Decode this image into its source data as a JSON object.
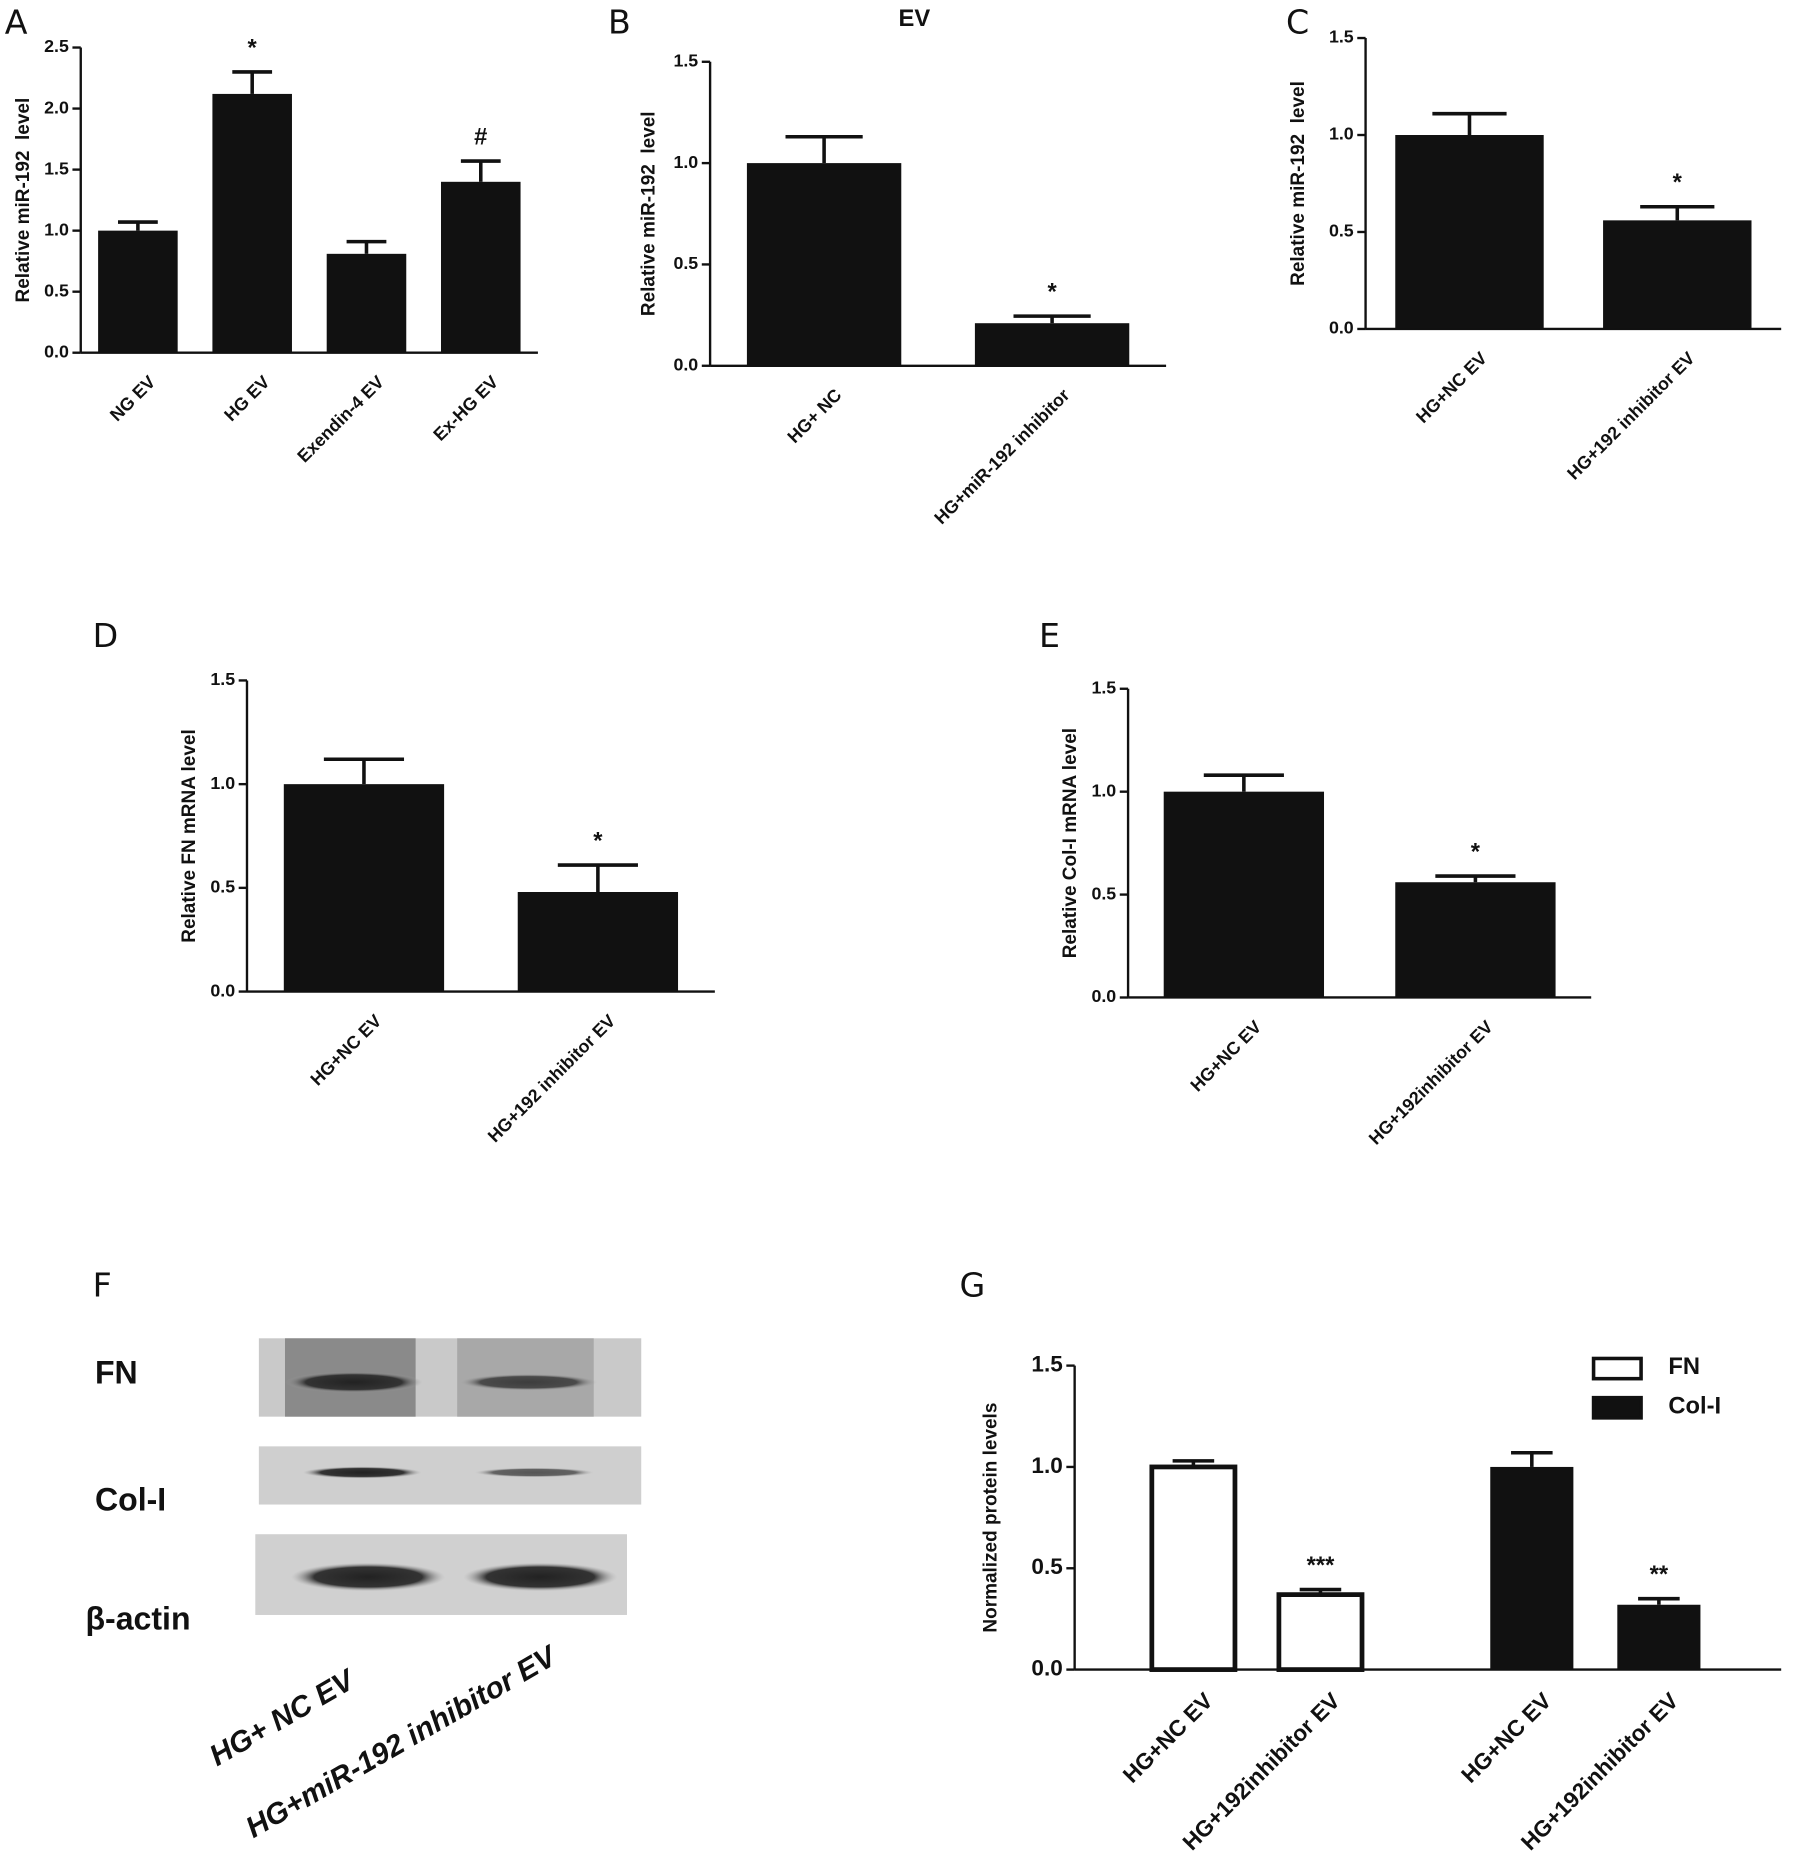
{
  "chart_data": [
    {
      "type": "bar",
      "label": "A",
      "ylabel": "Relative miR-192  level",
      "categories": [
        "NG EV",
        "HG EV",
        "Exendin-4 EV",
        "Ex-HG EV"
      ],
      "values": [
        1.0,
        2.12,
        0.81,
        1.4
      ],
      "errors": [
        0.07,
        0.18,
        0.1,
        0.17
      ],
      "markers": [
        null,
        "*",
        null,
        "#"
      ],
      "color": "#111111",
      "ylim": [
        0,
        2.5
      ],
      "yticks": [
        {
          "value": 0,
          "label": "0.0"
        },
        {
          "value": 0.5,
          "label": "0.5"
        },
        {
          "value": 1,
          "label": "1.0"
        },
        {
          "value": 1.5,
          "label": "1.5"
        },
        {
          "value": 2,
          "label": "2.0"
        },
        {
          "value": 2.5,
          "label": "2.5"
        }
      ]
    },
    {
      "type": "bar",
      "label": "B",
      "title": "EV",
      "ylabel": "Relative miR-192  level",
      "categories": [
        "HG+ NC",
        "HG+miR-192 inhibitor"
      ],
      "values": [
        1.0,
        0.21
      ],
      "errors": [
        0.13,
        0.035
      ],
      "markers": [
        null,
        "*"
      ],
      "color": "#111111",
      "ylim": [
        0,
        1.5
      ],
      "yticks": [
        {
          "value": 0,
          "label": "0.0"
        },
        {
          "value": 0.5,
          "label": "0.5"
        },
        {
          "value": 1,
          "label": "1.0"
        },
        {
          "value": 1.5,
          "label": "1.5"
        }
      ]
    },
    {
      "type": "bar",
      "label": "C",
      "ylabel": "Relative miR-192  level",
      "categories": [
        "HG+NC EV",
        "HG+192 inhibitor EV"
      ],
      "values": [
        1.0,
        0.56
      ],
      "errors": [
        0.11,
        0.07
      ],
      "markers": [
        null,
        "*"
      ],
      "color": "#111111",
      "ylim": [
        0,
        1.5
      ],
      "yticks": [
        {
          "value": 0,
          "label": "0.0"
        },
        {
          "value": 0.5,
          "label": "0.5"
        },
        {
          "value": 1,
          "label": "1.0"
        },
        {
          "value": 1.5,
          "label": "1.5"
        }
      ]
    },
    {
      "type": "bar",
      "label": "D",
      "ylabel": "Relative FN mRNA level",
      "categories": [
        "HG+NC EV",
        "HG+192 inhibitor EV"
      ],
      "values": [
        1.0,
        0.48
      ],
      "errors": [
        0.12,
        0.13
      ],
      "markers": [
        null,
        "*"
      ],
      "color": "#111111",
      "ylim": [
        0,
        1.5
      ],
      "yticks": [
        {
          "value": 0,
          "label": "0.0"
        },
        {
          "value": 0.5,
          "label": "0.5"
        },
        {
          "value": 1,
          "label": "1.0"
        },
        {
          "value": 1.5,
          "label": "1.5"
        }
      ]
    },
    {
      "type": "bar",
      "label": "E",
      "ylabel": "Relative Col-I mRNA level",
      "categories": [
        "HG+NC EV",
        "HG+192inhibitor EV"
      ],
      "values": [
        1.0,
        0.56
      ],
      "errors": [
        0.08,
        0.03
      ],
      "markers": [
        null,
        "*"
      ],
      "color": "#111111",
      "ylim": [
        0,
        1.5
      ],
      "yticks": [
        {
          "value": 0,
          "label": "0.0"
        },
        {
          "value": 0.5,
          "label": "0.5"
        },
        {
          "value": 1,
          "label": "1.0"
        },
        {
          "value": 1.5,
          "label": "1.5"
        }
      ]
    },
    {
      "type": "grouped_bar",
      "label": "G",
      "ylabel": "Normalized protein levels",
      "categories": [
        "HG+NC EV",
        "HG+192inhibitor EV",
        "HG+NC EV",
        "HG+192inhibitor EV"
      ],
      "series": [
        {
          "name": "FN",
          "color": "#ffffff",
          "values": [
            1.0,
            0.37,
            null,
            null
          ],
          "errors": [
            0.03,
            0.025,
            null,
            null
          ],
          "markers": [
            null,
            "***",
            null,
            null
          ]
        },
        {
          "name": "Col-I",
          "color": "#111111",
          "values": [
            null,
            null,
            1.0,
            0.32
          ],
          "errors": [
            null,
            null,
            0.07,
            0.03
          ],
          "markers": [
            null,
            null,
            null,
            "**"
          ]
        }
      ],
      "legend": "upper right",
      "ylim": [
        0,
        1.5
      ],
      "yticks": [
        {
          "value": 0,
          "label": "0.0"
        },
        {
          "value": 0.5,
          "label": "0.5"
        },
        {
          "value": 1,
          "label": "1.0"
        },
        {
          "value": 1.5,
          "label": "1.5"
        }
      ]
    }
  ],
  "blot": {
    "label": "F",
    "rows": [
      "FN",
      "Col-I",
      "β-actin"
    ],
    "lanes": [
      "HG+ NC EV",
      "HG+miR-192 inhibitor EV"
    ]
  }
}
